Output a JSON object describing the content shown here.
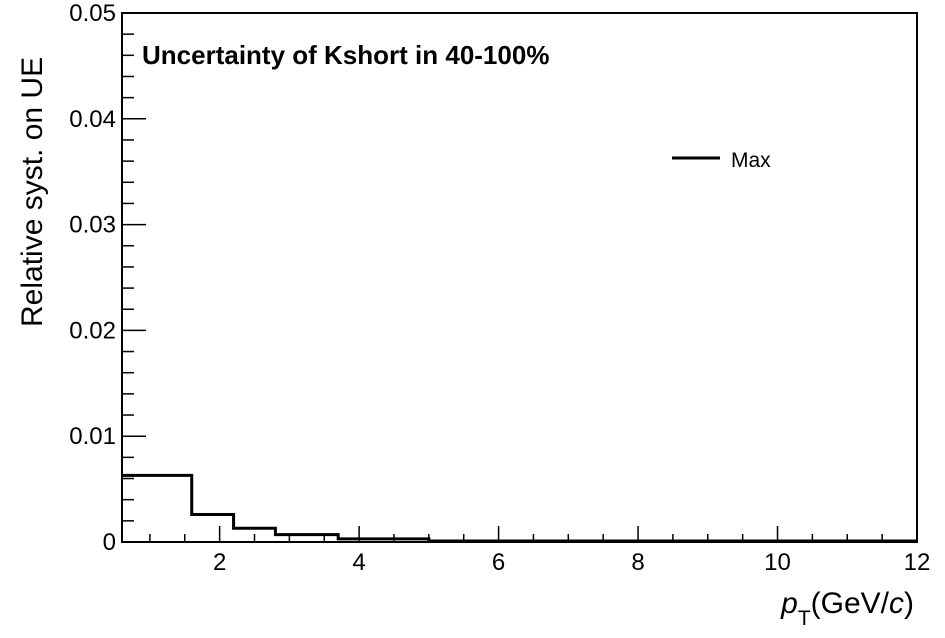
{
  "chart_data": {
    "type": "line",
    "title": "Uncertainty of Kshort in 40-100%",
    "xlabel": {
      "main": "p",
      "sub": "T",
      "units_pre": "(GeV/",
      "units_var": "c",
      "units_post": ")"
    },
    "ylabel": "Relative syst. on UE",
    "xlim": [
      0.6,
      12
    ],
    "ylim": [
      0,
      0.05
    ],
    "x_ticks": [
      2,
      4,
      6,
      8,
      10,
      12
    ],
    "y_ticks": [
      0,
      0.01,
      0.02,
      0.03,
      0.04,
      0.05
    ],
    "x_tick_labels": [
      "2",
      "4",
      "6",
      "8",
      "10",
      "12"
    ],
    "y_tick_labels": [
      "0",
      "0.01",
      "0.02",
      "0.03",
      "0.04",
      "0.05"
    ],
    "legend": {
      "entries": [
        "Max"
      ],
      "position": "top-right"
    },
    "grid": false,
    "series": [
      {
        "name": "Max",
        "style": "step-histogram",
        "bin_edges": [
          0.6,
          1.6,
          2.2,
          2.8,
          3.7,
          5.0,
          12.0
        ],
        "values": [
          0.0063,
          0.0026,
          0.0013,
          0.0007,
          0.0003,
          0.0001
        ]
      }
    ]
  }
}
